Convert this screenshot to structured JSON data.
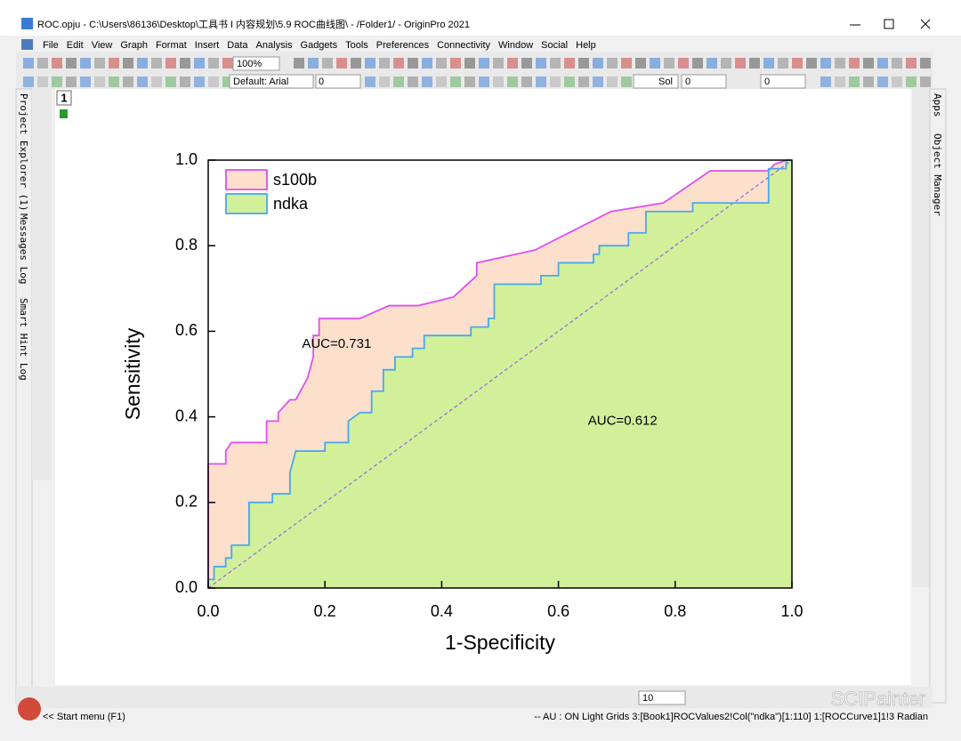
{
  "window": {
    "title": "ROC.opju - C:\\Users\\86136\\Desktop\\工具书 I 内容规划\\5.9 ROC曲线图\\ - /Folder1/ - OriginPro 2021"
  },
  "menu": [
    "File",
    "Edit",
    "View",
    "Graph",
    "Format",
    "Insert",
    "Data",
    "Analysis",
    "Gadgets",
    "Tools",
    "Preferences",
    "Connectivity",
    "Window",
    "Social",
    "Help"
  ],
  "toolbar": {
    "zoom": "100%",
    "font": "Default: Arial",
    "font_size": "0",
    "line_style": "Sol",
    "line_width": "0",
    "fill_width": "0",
    "bottom_size": "10"
  },
  "side_tabs": [
    "Project Explorer (1)",
    "Messages Log",
    "Smart Hint Log"
  ],
  "right_tabs": [
    "Apps",
    "Object Manager"
  ],
  "layer": "1",
  "chart_data": {
    "type": "area",
    "xlabel": "1-Specificity",
    "ylabel": "Sensitivity",
    "xlim": [
      0,
      1
    ],
    "ylim": [
      0,
      1
    ],
    "xticks": [
      {
        "value": 0,
        "label": "0.0"
      },
      {
        "value": 0.2,
        "label": "0.2"
      },
      {
        "value": 0.4,
        "label": "0.4"
      },
      {
        "value": 0.6,
        "label": "0.6"
      },
      {
        "value": 0.8,
        "label": "0.8"
      },
      {
        "value": 1,
        "label": "1.0"
      }
    ],
    "yticks": [
      {
        "value": 0,
        "label": "0.0"
      },
      {
        "value": 0.2,
        "label": "0.2"
      },
      {
        "value": 0.4,
        "label": "0.4"
      },
      {
        "value": 0.6,
        "label": "0.6"
      },
      {
        "value": 0.8,
        "label": "0.8"
      },
      {
        "value": 1,
        "label": "1.0"
      }
    ],
    "legend": "upper left",
    "series": [
      {
        "name": "s100b",
        "color": "#e050e8",
        "fill": "#fce0cc",
        "x": [
          0,
          0,
          0.03,
          0.03,
          0.04,
          0.1,
          0.1,
          0.12,
          0.12,
          0.14,
          0.15,
          0.17,
          0.18,
          0.18,
          0.19,
          0.19,
          0.26,
          0.31,
          0.36,
          0.42,
          0.46,
          0.46,
          0.56,
          0.69,
          0.78,
          0.86,
          0.96,
          0.97,
          0.99,
          1
        ],
        "values": [
          0,
          0.29,
          0.29,
          0.32,
          0.34,
          0.34,
          0.39,
          0.39,
          0.41,
          0.44,
          0.44,
          0.49,
          0.54,
          0.59,
          0.59,
          0.63,
          0.63,
          0.66,
          0.66,
          0.68,
          0.73,
          0.76,
          0.79,
          0.88,
          0.9,
          0.975,
          0.975,
          0.99,
          1,
          1
        ]
      },
      {
        "name": "ndka",
        "color": "#4aa8e8",
        "fill": "#d2f09a",
        "x": [
          0,
          0,
          0.01,
          0.01,
          0.03,
          0.03,
          0.04,
          0.04,
          0.07,
          0.07,
          0.11,
          0.11,
          0.14,
          0.14,
          0.15,
          0.2,
          0.2,
          0.24,
          0.24,
          0.26,
          0.28,
          0.28,
          0.3,
          0.3,
          0.32,
          0.32,
          0.35,
          0.35,
          0.37,
          0.37,
          0.45,
          0.45,
          0.48,
          0.48,
          0.49,
          0.49,
          0.57,
          0.57,
          0.6,
          0.6,
          0.66,
          0.66,
          0.67,
          0.67,
          0.72,
          0.72,
          0.75,
          0.75,
          0.83,
          0.83,
          0.96,
          0.96,
          0.99,
          0.99,
          1
        ],
        "values": [
          0,
          0.02,
          0.02,
          0.05,
          0.05,
          0.07,
          0.07,
          0.1,
          0.1,
          0.2,
          0.2,
          0.22,
          0.22,
          0.27,
          0.32,
          0.32,
          0.34,
          0.34,
          0.39,
          0.41,
          0.41,
          0.46,
          0.46,
          0.51,
          0.51,
          0.54,
          0.54,
          0.56,
          0.56,
          0.59,
          0.59,
          0.61,
          0.61,
          0.63,
          0.63,
          0.71,
          0.71,
          0.73,
          0.73,
          0.76,
          0.76,
          0.78,
          0.78,
          0.8,
          0.8,
          0.83,
          0.83,
          0.88,
          0.88,
          0.9,
          0.9,
          0.98,
          0.98,
          1,
          1
        ]
      }
    ],
    "annotations": [
      {
        "text": "AUC=0.731",
        "x": 0.22,
        "y": 0.57
      },
      {
        "text": "AUC=0.612",
        "x": 0.71,
        "y": 0.39
      }
    ]
  },
  "status": {
    "start": "<< Start menu (F1)",
    "info": "--   AU : ON  Light Grids  3:[Book1]ROCValues2!Col(\"ndka\")[1:110]  1:[ROCCurve1]1!3  Radian"
  },
  "watermark": "SCIPainter"
}
